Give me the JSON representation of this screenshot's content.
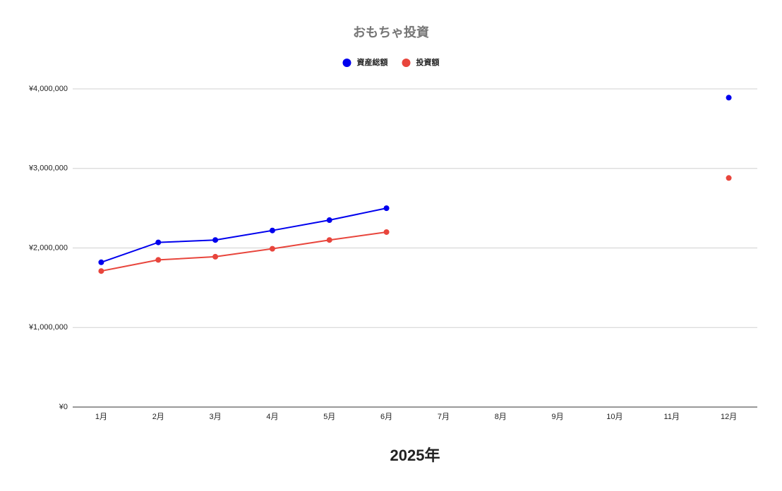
{
  "chart_data": {
    "type": "line",
    "title": "おもちゃ投資",
    "xlabel": "2025年",
    "xlabel_color": "#ff0000",
    "categories": [
      "1月",
      "2月",
      "3月",
      "4月",
      "5月",
      "6月",
      "7月",
      "8月",
      "9月",
      "10月",
      "11月",
      "12月"
    ],
    "series": [
      {
        "name": "資産総額",
        "color": "#0000ee",
        "values": [
          1820000,
          2070000,
          2100000,
          2220000,
          2350000,
          2500000,
          null,
          null,
          null,
          null,
          null,
          3890000
        ]
      },
      {
        "name": "投資額",
        "color": "#e8453c",
        "values": [
          1710000,
          1850000,
          1890000,
          1990000,
          2100000,
          2200000,
          null,
          null,
          null,
          null,
          null,
          2880000
        ]
      }
    ],
    "ylim": [
      0,
      4000000
    ],
    "yticks": [
      {
        "value": 0,
        "label": "¥0"
      },
      {
        "value": 1000000,
        "label": "¥1,000,000"
      },
      {
        "value": 2000000,
        "label": "¥2,000,000"
      },
      {
        "value": 3000000,
        "label": "¥3,000,000"
      },
      {
        "value": 4000000,
        "label": "¥4,000,000"
      }
    ],
    "grid": true,
    "legend": "top"
  }
}
